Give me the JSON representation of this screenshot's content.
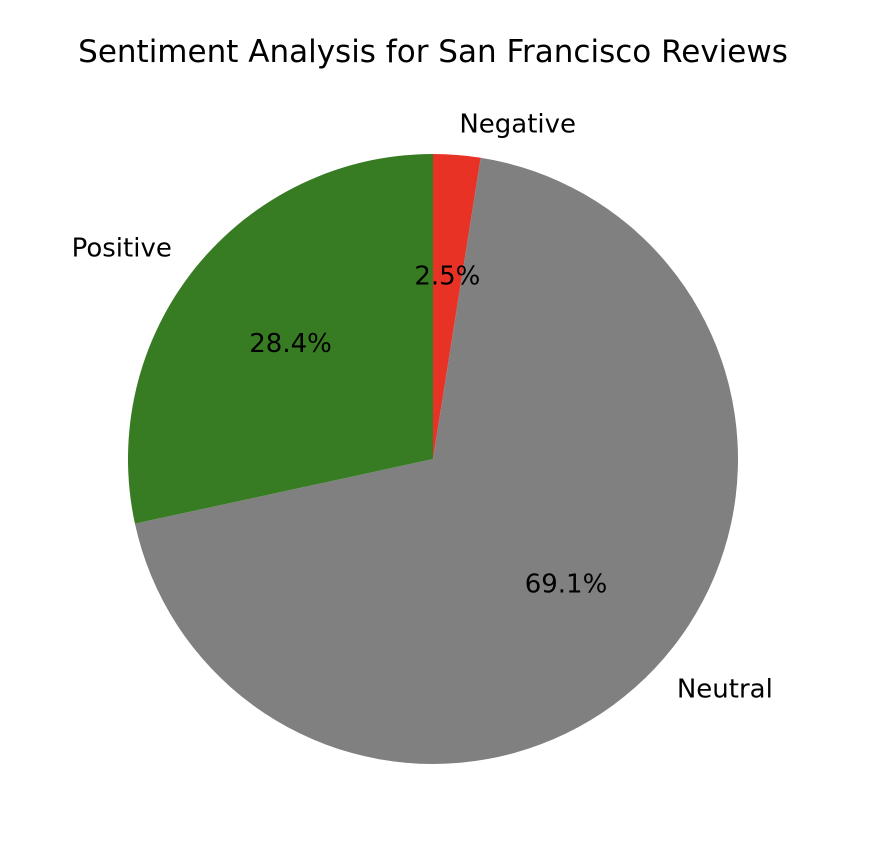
{
  "chart_data": {
    "type": "pie",
    "title": "Sentiment Analysis for San Francisco Reviews",
    "start_angle_deg": 90,
    "direction": "clockwise",
    "slices": [
      {
        "label": "Negative",
        "value": 2.5,
        "pct_label": "2.5%",
        "color": "#e83226"
      },
      {
        "label": "Neutral",
        "value": 69.1,
        "pct_label": "69.1%",
        "color": "#808080"
      },
      {
        "label": "Positive",
        "value": 28.4,
        "pct_label": "28.4%",
        "color": "#377b22"
      }
    ]
  }
}
